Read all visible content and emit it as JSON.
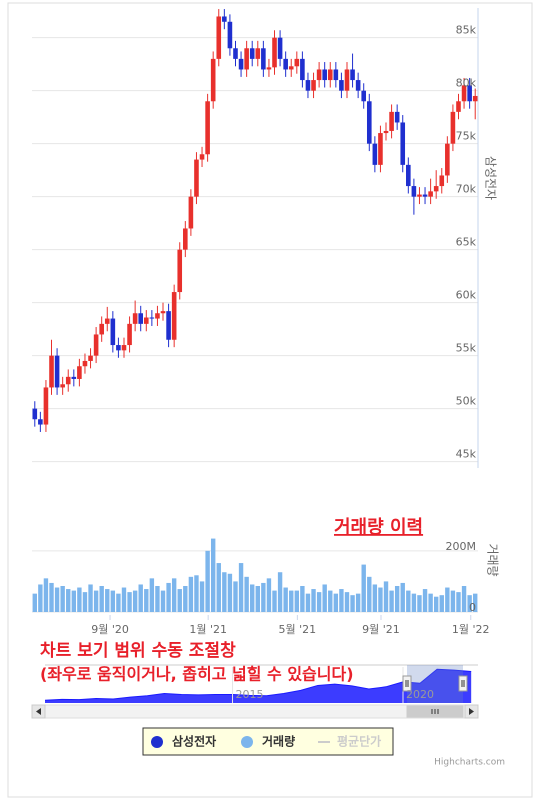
{
  "chart_data": {
    "type": "candlestick",
    "ytitle": "삼성전자",
    "y2title": "거래량",
    "annotations": [
      "거래량 이력",
      "차트 보기 범위 수동 조절창",
      "(좌우로 움직이거나, 좁히고 넓힐 수 있습니다)"
    ],
    "credits": "Highcharts.com",
    "xlim": [
      -0.5,
      79.5
    ],
    "xticks": [
      {
        "value": 13.5,
        "label": "9월 '20"
      },
      {
        "value": 31.1,
        "label": "1월 '21"
      },
      {
        "value": 47.1,
        "label": "5월 '21"
      },
      {
        "value": 62.1,
        "label": "9월 '21"
      },
      {
        "value": 78.2,
        "label": "1월 '22"
      }
    ],
    "ylim": [
      44400,
      87800
    ],
    "yticks": [
      {
        "value": 45000,
        "label": "45k"
      },
      {
        "value": 50000,
        "label": "50k"
      },
      {
        "value": 55000,
        "label": "55k"
      },
      {
        "value": 60000,
        "label": "60k"
      },
      {
        "value": 65000,
        "label": "65k"
      },
      {
        "value": 70000,
        "label": "70k"
      },
      {
        "value": 75000,
        "label": "75k"
      },
      {
        "value": 80000,
        "label": "80k"
      },
      {
        "value": 85000,
        "label": "85k"
      }
    ],
    "y2lim": [
      0,
      340000000
    ],
    "y2ticks": [
      0,
      {
        "value": 200000000,
        "label": "200M"
      }
    ],
    "grid": true,
    "series": [
      {
        "name": "삼성전자",
        "type": "candlestick",
        "color": "#1f2fcf",
        "up_color": "#e8302c",
        "values": [
          [
            50000,
            50700,
            48300,
            49000
          ],
          [
            49000,
            49700,
            47800,
            48500
          ],
          [
            48500,
            52700,
            47800,
            52000
          ],
          [
            52000,
            56500,
            51300,
            55000
          ],
          [
            55000,
            55700,
            51300,
            52000
          ],
          [
            52000,
            53000,
            51300,
            52300
          ],
          [
            52300,
            53700,
            51600,
            53000
          ],
          [
            53000,
            53700,
            52100,
            52800
          ],
          [
            52800,
            54700,
            52100,
            54000
          ],
          [
            54000,
            55200,
            53300,
            54500
          ],
          [
            54500,
            55700,
            53800,
            55000
          ],
          [
            55000,
            57700,
            54300,
            57000
          ],
          [
            57000,
            58700,
            56300,
            58000
          ],
          [
            58000,
            59600,
            57300,
            58500
          ],
          [
            58500,
            59200,
            55300,
            56000
          ],
          [
            56000,
            56700,
            54800,
            55500
          ],
          [
            55500,
            56700,
            54800,
            56000
          ],
          [
            56000,
            58700,
            55300,
            58000
          ],
          [
            58000,
            60200,
            57300,
            59000
          ],
          [
            59000,
            59700,
            57300,
            58000
          ],
          [
            58000,
            59300,
            57300,
            58600
          ],
          [
            58600,
            59300,
            57800,
            58500
          ],
          [
            58500,
            59700,
            57800,
            59000
          ],
          [
            59000,
            60000,
            58300,
            59200
          ],
          [
            59200,
            59900,
            55800,
            56500
          ],
          [
            56500,
            61700,
            55800,
            61000
          ],
          [
            61000,
            65700,
            60300,
            65000
          ],
          [
            65000,
            67700,
            64300,
            67000
          ],
          [
            67000,
            70700,
            66300,
            70000
          ],
          [
            70000,
            74200,
            69300,
            73500
          ],
          [
            73500,
            74700,
            72800,
            74000
          ],
          [
            74000,
            79700,
            73300,
            79000
          ],
          [
            79000,
            83700,
            78300,
            83000
          ],
          [
            83000,
            87700,
            82300,
            87000
          ],
          [
            87000,
            87700,
            85800,
            86500
          ],
          [
            86500,
            87200,
            83300,
            84000
          ],
          [
            84000,
            84700,
            82300,
            83000
          ],
          [
            83000,
            83700,
            81300,
            82000
          ],
          [
            82000,
            84700,
            81300,
            84000
          ],
          [
            84000,
            84700,
            82300,
            83000
          ],
          [
            83000,
            84700,
            82300,
            84000
          ],
          [
            84000,
            84700,
            81300,
            82000
          ],
          [
            82000,
            83000,
            81300,
            82200
          ],
          [
            82200,
            85700,
            81500,
            85000
          ],
          [
            85000,
            85700,
            82300,
            83000
          ],
          [
            83000,
            83700,
            81300,
            82000
          ],
          [
            82000,
            83000,
            81300,
            82300
          ],
          [
            82300,
            83700,
            81600,
            83000
          ],
          [
            83000,
            83700,
            80300,
            81000
          ],
          [
            81000,
            81700,
            79300,
            80000
          ],
          [
            80000,
            81700,
            79300,
            81000
          ],
          [
            81000,
            82700,
            80300,
            82000
          ],
          [
            82000,
            82700,
            80300,
            81000
          ],
          [
            81000,
            82700,
            80300,
            82000
          ],
          [
            82000,
            82700,
            80300,
            81000
          ],
          [
            81000,
            81700,
            79300,
            80000
          ],
          [
            80000,
            82700,
            79300,
            82000
          ],
          [
            82000,
            83500,
            80300,
            81000
          ],
          [
            81000,
            81700,
            79300,
            80000
          ],
          [
            80000,
            80700,
            78300,
            79000
          ],
          [
            79000,
            79700,
            74300,
            75000
          ],
          [
            75000,
            75700,
            72300,
            73000
          ],
          [
            73000,
            76700,
            72300,
            76000
          ],
          [
            76000,
            77000,
            75300,
            76200
          ],
          [
            76200,
            78700,
            75500,
            78000
          ],
          [
            78000,
            78700,
            76300,
            77000
          ],
          [
            77000,
            77700,
            72300,
            73000
          ],
          [
            73000,
            73700,
            70300,
            71000
          ],
          [
            71000,
            71700,
            68300,
            70000
          ],
          [
            70000,
            70900,
            69300,
            70200
          ],
          [
            70200,
            70900,
            69300,
            70000
          ],
          [
            70000,
            71700,
            69300,
            70500
          ],
          [
            70500,
            72500,
            69800,
            71000
          ],
          [
            71000,
            72700,
            70300,
            72000
          ],
          [
            72000,
            75700,
            71300,
            75000
          ],
          [
            75000,
            78700,
            74300,
            78000
          ],
          [
            78000,
            79700,
            77300,
            79000
          ],
          [
            79000,
            81200,
            78300,
            80500
          ],
          [
            80500,
            81200,
            78300,
            79000
          ],
          [
            79000,
            80200,
            77300,
            79500
          ]
        ]
      },
      {
        "name": "거래량",
        "type": "column",
        "axis": "y2",
        "color": "#7cb5ec",
        "values": [
          60000000,
          90000000,
          110000000,
          95000000,
          80000000,
          85000000,
          75000000,
          70000000,
          80000000,
          65000000,
          90000000,
          70000000,
          85000000,
          75000000,
          70000000,
          60000000,
          80000000,
          65000000,
          70000000,
          90000000,
          75000000,
          110000000,
          85000000,
          70000000,
          95000000,
          110000000,
          75000000,
          85000000,
          115000000,
          120000000,
          100000000,
          200000000,
          240000000,
          160000000,
          130000000,
          125000000,
          100000000,
          160000000,
          115000000,
          90000000,
          85000000,
          95000000,
          110000000,
          70000000,
          130000000,
          80000000,
          70000000,
          70000000,
          85000000,
          60000000,
          75000000,
          65000000,
          90000000,
          70000000,
          60000000,
          75000000,
          65000000,
          55000000,
          60000000,
          155000000,
          115000000,
          90000000,
          80000000,
          100000000,
          70000000,
          85000000,
          95000000,
          70000000,
          60000000,
          55000000,
          75000000,
          60000000,
          50000000,
          55000000,
          80000000,
          70000000,
          65000000,
          85000000,
          55000000,
          60000000
        ]
      },
      {
        "name": "평균단가",
        "type": "line",
        "color": "#cccccc",
        "visible": false
      }
    ],
    "navigator": {
      "color": "#1a1aff",
      "xlim": [
        2009.5,
        2022.2
      ],
      "ylim": [
        8000,
        88000
      ],
      "xticks": [
        {
          "value": 2015,
          "label": "2015"
        },
        {
          "value": 2020,
          "label": "2020"
        }
      ],
      "x": [
        2009.5,
        2010,
        2010.5,
        2011,
        2011.5,
        2012,
        2012.5,
        2013,
        2013.5,
        2014,
        2014.5,
        2015,
        2015.5,
        2016,
        2016.5,
        2017,
        2017.5,
        2018,
        2018.5,
        2019,
        2019.5,
        2020,
        2020.5,
        2021,
        2021.5,
        2022
      ],
      "values": [
        14000,
        16000,
        15500,
        18000,
        17000,
        21000,
        24000,
        29000,
        27000,
        26000,
        27000,
        27000,
        25000,
        24000,
        29000,
        36000,
        47000,
        50000,
        46000,
        39000,
        44000,
        55000,
        52000,
        83000,
        81000,
        78000
      ]
    }
  }
}
